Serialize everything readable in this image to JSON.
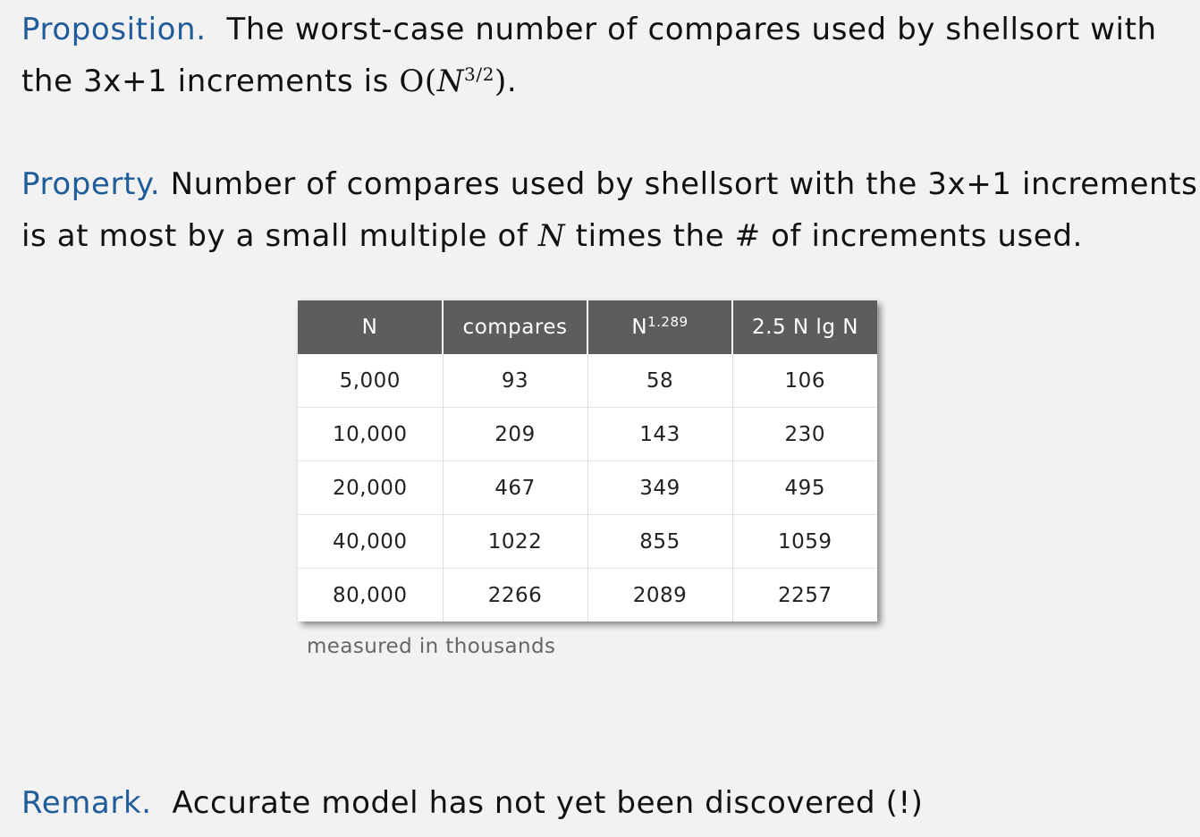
{
  "proposition": {
    "label": "Proposition.",
    "text_before": "The worst-case number of compares used by shellsort with the 3x+1 increments is ",
    "math_open": "O(",
    "math_var": "N",
    "math_exp": "3/2",
    "math_close": ")",
    "text_after": "."
  },
  "property": {
    "label": "Property.",
    "text_before": "Number of compares used by shellsort with the 3x+1 increments is at most by a small multiple of ",
    "math_var": "N",
    "text_after": " times the # of increments used."
  },
  "table": {
    "headers": [
      {
        "text": "N",
        "sup": ""
      },
      {
        "text": "compares",
        "sup": ""
      },
      {
        "text": "N",
        "sup": "1.289"
      },
      {
        "text": "2.5 N lg N",
        "sup": ""
      }
    ],
    "rows": [
      [
        "5,000",
        "93",
        "58",
        "106"
      ],
      [
        "10,000",
        "209",
        "143",
        "230"
      ],
      [
        "20,000",
        "467",
        "349",
        "495"
      ],
      [
        "40,000",
        "1022",
        "855",
        "1059"
      ],
      [
        "80,000",
        "2266",
        "2089",
        "2257"
      ]
    ],
    "note": "measured in thousands"
  },
  "remark": {
    "label": "Remark.",
    "text": "Accurate model has not yet been discovered (!)"
  },
  "colors": {
    "keyword": "#1f5c99",
    "header_bg": "#5d5d5d",
    "background": "#f2f2f2"
  }
}
